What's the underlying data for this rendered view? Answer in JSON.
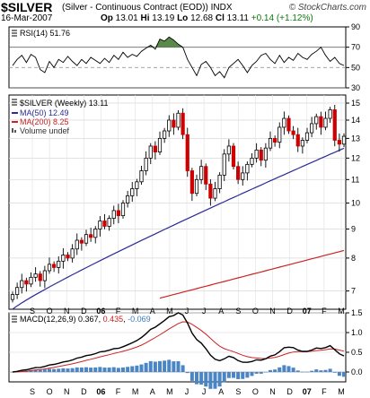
{
  "header": {
    "symbol": "$SILVER",
    "description": "(Silver - Continuous Contract (EOD)) INDX",
    "brand": "© StockCharts.com",
    "date": "16-Mar-2007",
    "open_label": "Op",
    "open": "13.01",
    "high_label": "Hi",
    "high": "13.19",
    "low_label": "Lo",
    "low": "12.68",
    "close_label": "Cl",
    "close": "13.11",
    "change": "+0.14 (+1.12%)"
  },
  "colors": {
    "up": "#000000",
    "down": "#cc0000",
    "ma50": "#2b2b99",
    "ma200": "#cc2222",
    "macd_hist": "#4a86c5",
    "rsi_fill": "#5a8a4a"
  },
  "chart_data": [
    {
      "type": "line",
      "panel": "rsi",
      "legend": "RSI(14) 51.76",
      "ylim": [
        30,
        90
      ],
      "yticks": [
        30,
        50,
        70,
        90
      ],
      "levels": [
        30,
        70
      ],
      "values": [
        52,
        58,
        62,
        55,
        63,
        60,
        48,
        45,
        56,
        50,
        58,
        55,
        61,
        56,
        52,
        58,
        54,
        60,
        57,
        54,
        59,
        55,
        62,
        58,
        65,
        60,
        63,
        61,
        66,
        69,
        72,
        68,
        78,
        76,
        80,
        77,
        73,
        70,
        58,
        50,
        42,
        53,
        56,
        50,
        42,
        46,
        40,
        50,
        54,
        58,
        52,
        45,
        52,
        56,
        62,
        64,
        58,
        54,
        62,
        55,
        60,
        57,
        64,
        60,
        58,
        63,
        66,
        70,
        62,
        56,
        60,
        54,
        52
      ]
    },
    {
      "type": "candlestick",
      "panel": "price",
      "scale": "log",
      "legend": "$SILVER (Weekly) 13.11",
      "ylim": [
        6.5,
        15.5
      ],
      "yticks": [
        7,
        8,
        9,
        10,
        11,
        12,
        13,
        14,
        15
      ],
      "x_labels": [
        "S",
        "O",
        "N",
        "D",
        "06",
        "F",
        "M",
        "A",
        "M",
        "J",
        "J",
        "A",
        "S",
        "O",
        "N",
        "D",
        "07",
        "F",
        "M"
      ],
      "series_names": [
        "MA(50) 12.49",
        "MA(200) 8.25",
        "Volume undef"
      ],
      "closes": [
        6.9,
        7.1,
        7.3,
        7.2,
        7.4,
        7.5,
        7.3,
        7.6,
        7.8,
        7.7,
        7.9,
        8.1,
        8.0,
        8.3,
        8.6,
        8.5,
        8.8,
        8.7,
        9.0,
        9.3,
        9.1,
        9.4,
        9.7,
        9.5,
        10.0,
        10.3,
        10.6,
        10.9,
        11.4,
        12.0,
        12.6,
        12.3,
        13.0,
        13.4,
        14.0,
        13.6,
        14.4,
        13.2,
        11.4,
        10.4,
        11.0,
        11.6,
        10.8,
        10.2,
        10.6,
        11.2,
        12.2,
        12.6,
        11.6,
        11.0,
        11.3,
        11.7,
        12.0,
        12.4,
        11.9,
        12.5,
        13.0,
        12.8,
        13.6,
        14.1,
        13.4,
        13.2,
        12.6,
        12.9,
        13.3,
        13.8,
        14.2,
        13.6,
        14.1,
        14.6,
        12.9,
        12.7,
        13.11
      ],
      "ma50_range": [
        6.5,
        12.49
      ],
      "ma200_range": [
        6.8,
        8.25
      ]
    },
    {
      "type": "line",
      "panel": "macd",
      "legend_label": "MACD(12,26,9)",
      "legend_values": [
        "0.367",
        "0.435",
        "-0.069"
      ],
      "ylim": [
        -0.25,
        1.5
      ],
      "yticks": [
        0.0,
        0.5,
        1.0,
        1.5
      ],
      "x_labels": [
        "S",
        "O",
        "N",
        "D",
        "06",
        "F",
        "M",
        "A",
        "M",
        "J",
        "J",
        "A",
        "S",
        "O",
        "N",
        "D",
        "07",
        "F",
        "M"
      ]
    }
  ]
}
